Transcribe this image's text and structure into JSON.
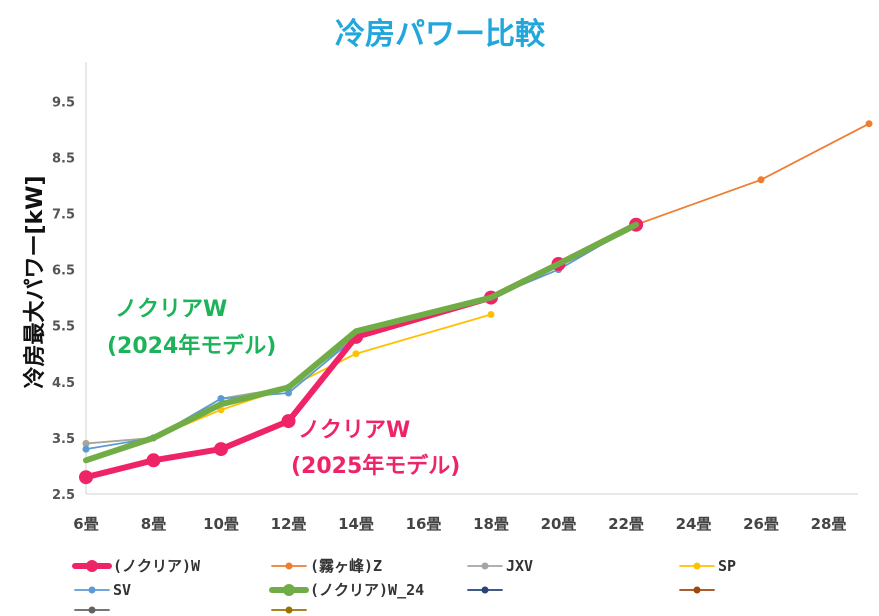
{
  "chart_data": {
    "type": "line",
    "title": "冷房パワー比較",
    "ylabel": "冷房最大パワー[kW]",
    "xlabel": "",
    "categories": [
      "6畳",
      "8畳",
      "10畳",
      "12畳",
      "14畳",
      "16畳",
      "18畳",
      "20畳",
      "22畳",
      "24畳",
      "26畳",
      "28畳"
    ],
    "y_ticks": [
      "2.5",
      "3.5",
      "4.5",
      "5.5",
      "6.5",
      "7.5",
      "8.5",
      "9.5"
    ],
    "ylim": [
      2.5,
      10.2
    ],
    "grid": false,
    "legend_position": "bottom",
    "series": [
      {
        "name": "(ノクリア)W",
        "color": "#ee2466",
        "marker": "circle",
        "points": [
          [
            6,
            2.8
          ],
          [
            8,
            3.1
          ],
          [
            10,
            3.3
          ],
          [
            12,
            3.8
          ],
          [
            14,
            5.3
          ],
          [
            18,
            6.0
          ],
          [
            20,
            6.6
          ],
          [
            22.3,
            7.3
          ]
        ]
      },
      {
        "name": "(霧ヶ峰)Z",
        "color": "#ef7d31",
        "marker": "circle",
        "points": [
          [
            20,
            6.6
          ],
          [
            22.3,
            7.3
          ],
          [
            26,
            8.1
          ],
          [
            29.2,
            9.1
          ]
        ]
      },
      {
        "name": "JXV",
        "color": "#a5a5a5",
        "marker": "circle",
        "points": [
          [
            6,
            3.4
          ],
          [
            8,
            3.5
          ],
          [
            10,
            4.2
          ],
          [
            12,
            4.4
          ],
          [
            14,
            5.3
          ],
          [
            18,
            6.0
          ],
          [
            20,
            6.6
          ],
          [
            22.3,
            7.3
          ]
        ]
      },
      {
        "name": "SP",
        "color": "#ffc000",
        "marker": "circle",
        "points": [
          [
            6,
            3.4
          ],
          [
            8,
            3.5
          ],
          [
            10,
            4.0
          ],
          [
            12,
            4.4
          ],
          [
            14,
            5.0
          ],
          [
            18,
            5.7
          ]
        ]
      },
      {
        "name": "SV",
        "color": "#5b9bd5",
        "marker": "circle",
        "points": [
          [
            6,
            3.3
          ],
          [
            8,
            3.5
          ],
          [
            10,
            4.2
          ],
          [
            12,
            4.3
          ],
          [
            14,
            5.3
          ],
          [
            18,
            6.0
          ],
          [
            20,
            6.5
          ],
          [
            22.3,
            7.3
          ]
        ]
      },
      {
        "name": "(ノクリア)W_24",
        "color": "#70ad47",
        "marker": "none",
        "points": [
          [
            6,
            3.1
          ],
          [
            8,
            3.5
          ],
          [
            10,
            4.1
          ],
          [
            12,
            4.4
          ],
          [
            14,
            5.4
          ],
          [
            18,
            6.0
          ],
          [
            20,
            6.6
          ],
          [
            22.3,
            7.3
          ]
        ]
      },
      {
        "name": "",
        "color": "#264478",
        "marker": "circle",
        "points": []
      },
      {
        "name": "",
        "color": "#9e480e",
        "marker": "circle",
        "points": []
      },
      {
        "name": "",
        "color": "#636363",
        "marker": "circle",
        "points": []
      },
      {
        "name": "",
        "color": "#997300",
        "marker": "circle",
        "points": []
      }
    ],
    "annotations": [
      {
        "lines": [
          "ノクリアW",
          "(2024年モデル)"
        ],
        "color": "#1db35a"
      },
      {
        "lines": [
          "ノクリアW",
          "(2025年モデル)"
        ],
        "color": "#ee2466"
      }
    ]
  }
}
